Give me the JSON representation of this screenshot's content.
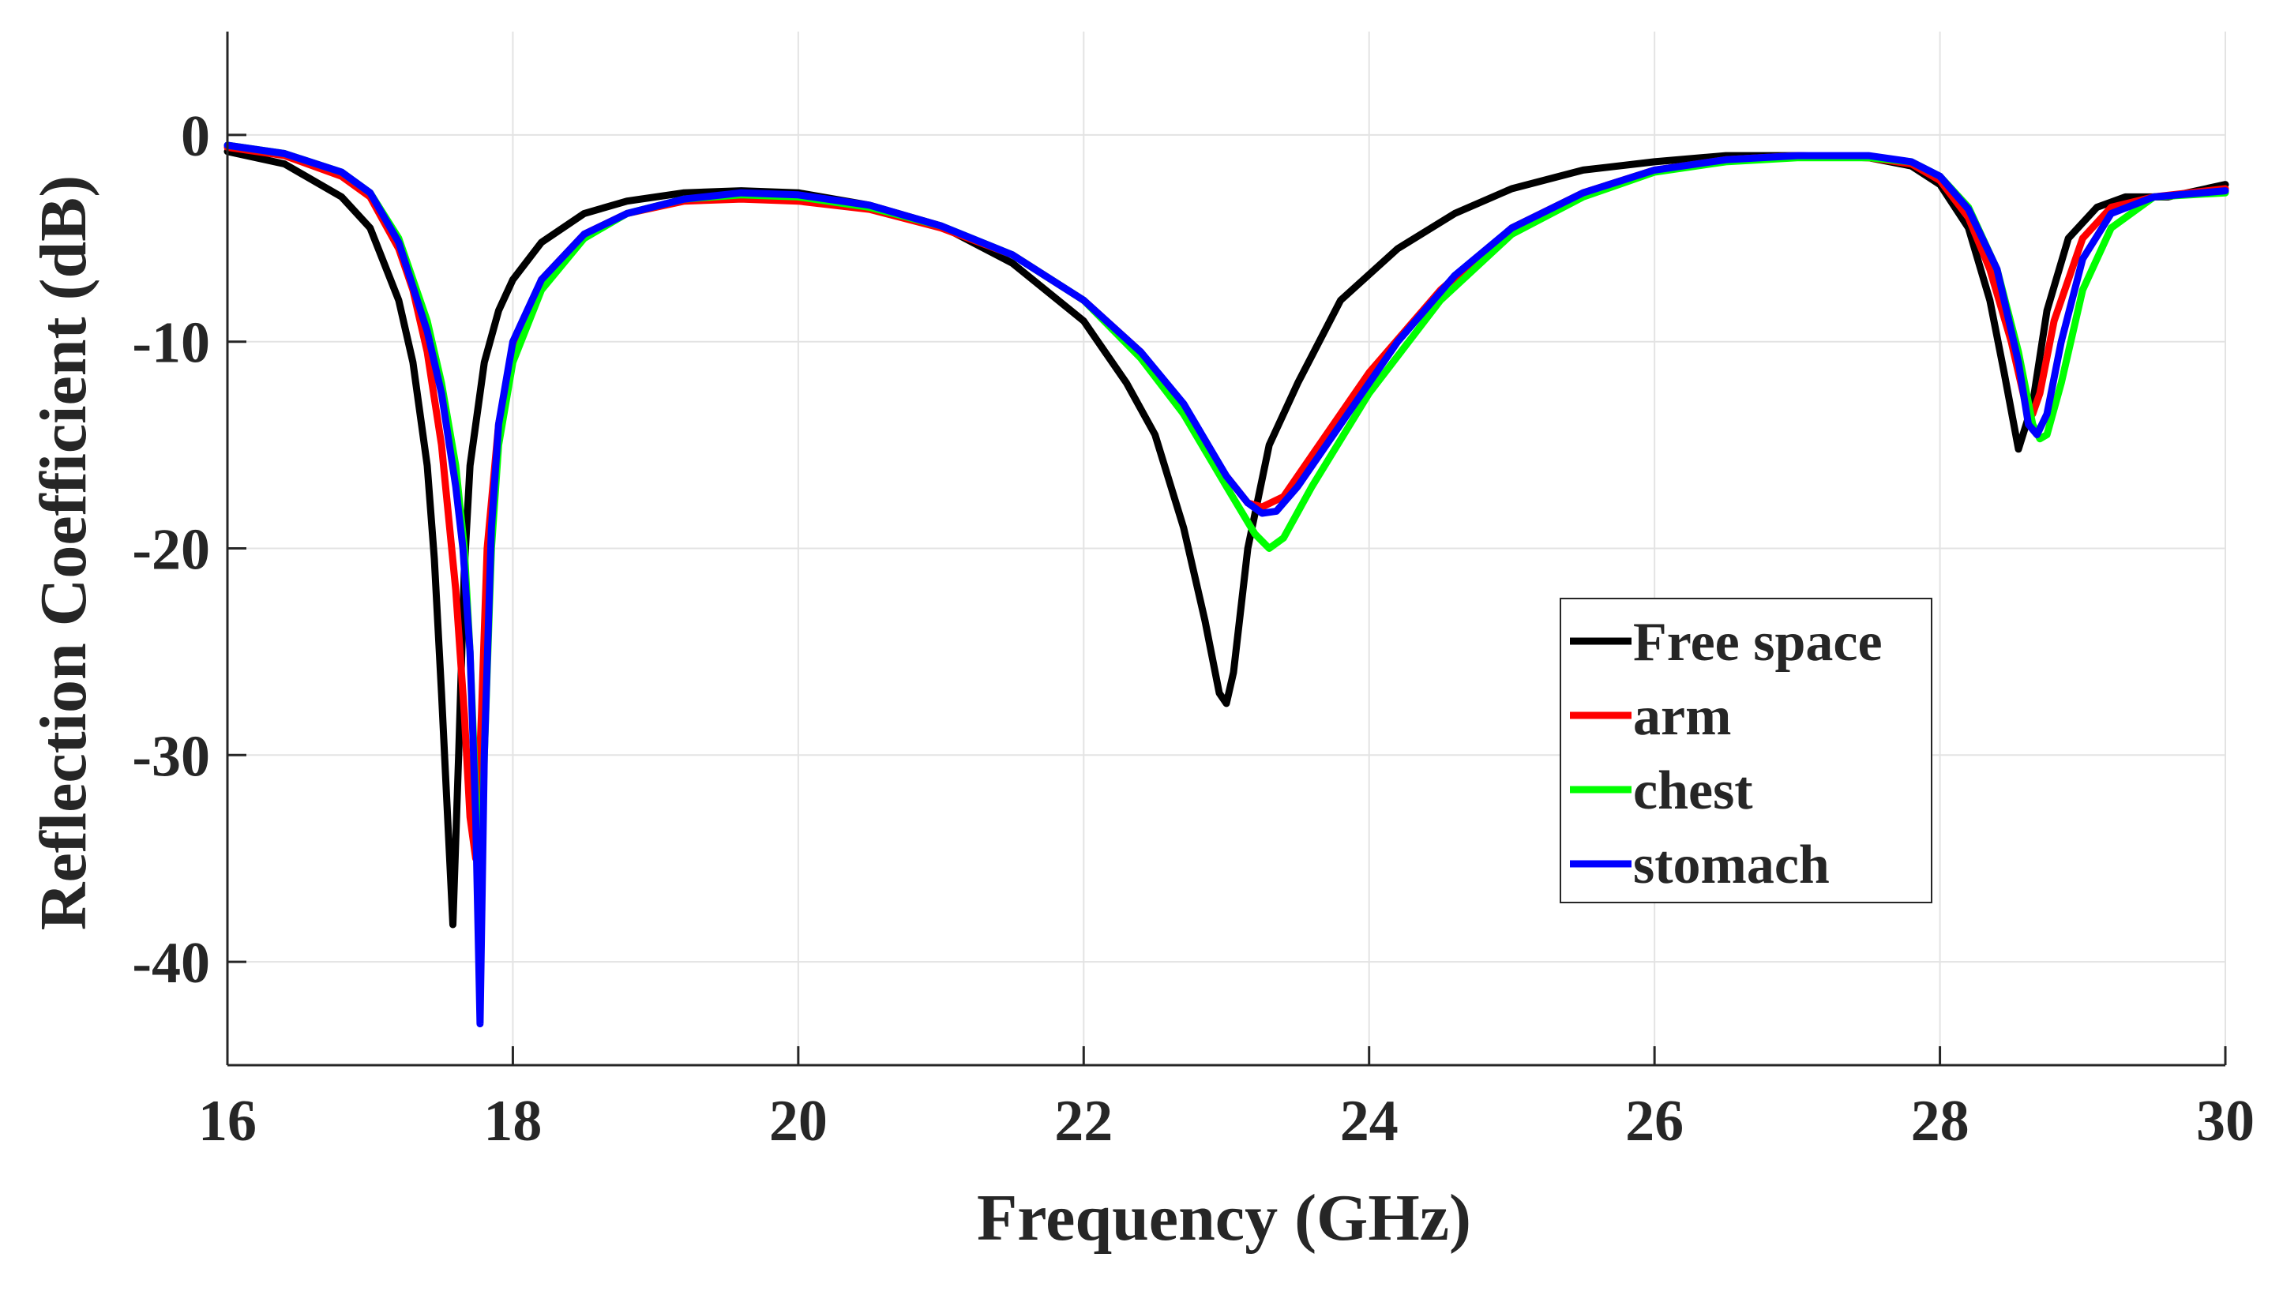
{
  "chart_data": {
    "type": "line",
    "title": "",
    "xlabel": "Frequency (GHz)",
    "ylabel": "Reflection Coefficient (dB)",
    "xlim": [
      16,
      30
    ],
    "ylim": [
      -45,
      5
    ],
    "xticks": [
      16,
      18,
      20,
      22,
      24,
      26,
      28,
      30
    ],
    "yticks": [
      0,
      -10,
      -20,
      -30,
      -40
    ],
    "xtick_labels": [
      "16",
      "18",
      "20",
      "22",
      "24",
      "26",
      "28",
      "30"
    ],
    "ytick_labels": [
      "0",
      "-10",
      "-20",
      "-30",
      "-40"
    ],
    "grid": true,
    "legend_position": "center-right",
    "series": [
      {
        "name": "Free space",
        "color": "#000000",
        "x": [
          16.0,
          16.4,
          16.8,
          17.0,
          17.2,
          17.3,
          17.4,
          17.45,
          17.5,
          17.55,
          17.58,
          17.62,
          17.66,
          17.7,
          17.8,
          17.9,
          18.0,
          18.2,
          18.5,
          18.8,
          19.2,
          19.6,
          20.0,
          20.5,
          21.0,
          21.5,
          22.0,
          22.3,
          22.5,
          22.7,
          22.85,
          22.95,
          23.0,
          23.05,
          23.15,
          23.3,
          23.5,
          23.8,
          24.2,
          24.6,
          25.0,
          25.5,
          26.0,
          26.5,
          27.0,
          27.5,
          27.8,
          28.0,
          28.2,
          28.35,
          28.45,
          28.55,
          28.65,
          28.75,
          28.9,
          29.1,
          29.3,
          29.6,
          30.0
        ],
        "y": [
          -0.8,
          -1.4,
          -3.0,
          -4.5,
          -8.0,
          -11.0,
          -16.0,
          -20.5,
          -27.0,
          -34.0,
          -38.2,
          -30.0,
          -21.0,
          -16.0,
          -11.0,
          -8.5,
          -7.0,
          -5.2,
          -3.8,
          -3.2,
          -2.8,
          -2.7,
          -2.8,
          -3.4,
          -4.4,
          -6.2,
          -9.0,
          -12.0,
          -14.5,
          -19.0,
          -23.5,
          -27.0,
          -27.5,
          -26.0,
          -20.0,
          -15.0,
          -12.0,
          -8.0,
          -5.5,
          -3.8,
          -2.6,
          -1.7,
          -1.3,
          -1.0,
          -1.0,
          -1.1,
          -1.5,
          -2.4,
          -4.5,
          -8.0,
          -11.5,
          -15.2,
          -13.0,
          -8.5,
          -5.0,
          -3.5,
          -3.0,
          -3.0,
          -2.4
        ]
      },
      {
        "name": "arm",
        "color": "#ff0000",
        "x": [
          16.0,
          16.4,
          16.8,
          17.0,
          17.2,
          17.3,
          17.4,
          17.5,
          17.6,
          17.66,
          17.7,
          17.74,
          17.78,
          17.82,
          17.9,
          18.0,
          18.2,
          18.5,
          18.8,
          19.2,
          19.6,
          20.0,
          20.5,
          21.0,
          21.5,
          22.0,
          22.4,
          22.7,
          23.0,
          23.15,
          23.25,
          23.4,
          23.6,
          24.0,
          24.5,
          25.0,
          25.5,
          26.0,
          26.5,
          27.0,
          27.5,
          27.8,
          28.0,
          28.2,
          28.35,
          28.5,
          28.6,
          28.65,
          28.7,
          28.8,
          29.0,
          29.2,
          29.5,
          30.0
        ],
        "y": [
          -0.6,
          -1.0,
          -2.0,
          -3.0,
          -5.5,
          -7.5,
          -10.5,
          -15.0,
          -22.0,
          -28.0,
          -33.0,
          -35.0,
          -28.0,
          -20.0,
          -14.0,
          -10.5,
          -7.0,
          -4.8,
          -3.8,
          -3.2,
          -3.1,
          -3.2,
          -3.6,
          -4.5,
          -5.8,
          -8.0,
          -10.5,
          -13.5,
          -16.5,
          -17.8,
          -18.0,
          -17.5,
          -15.5,
          -11.5,
          -7.5,
          -4.5,
          -2.8,
          -1.7,
          -1.2,
          -1.0,
          -1.1,
          -1.4,
          -2.2,
          -4.0,
          -6.5,
          -10.0,
          -13.0,
          -13.5,
          -12.5,
          -9.0,
          -5.0,
          -3.5,
          -3.0,
          -2.6
        ]
      },
      {
        "name": "chest",
        "color": "#00ff00",
        "x": [
          16.0,
          16.4,
          16.8,
          17.0,
          17.2,
          17.4,
          17.5,
          17.6,
          17.66,
          17.7,
          17.74,
          17.77,
          17.8,
          17.85,
          17.9,
          18.0,
          18.2,
          18.5,
          18.8,
          19.2,
          19.6,
          20.0,
          20.5,
          21.0,
          21.5,
          22.0,
          22.4,
          22.7,
          23.0,
          23.2,
          23.3,
          23.4,
          23.6,
          24.0,
          24.5,
          25.0,
          25.5,
          26.0,
          26.5,
          27.0,
          27.5,
          27.8,
          28.0,
          28.2,
          28.4,
          28.55,
          28.65,
          28.7,
          28.75,
          28.85,
          29.0,
          29.2,
          29.5,
          30.0
        ],
        "y": [
          -0.5,
          -0.9,
          -1.8,
          -2.8,
          -5.0,
          -9.0,
          -12.0,
          -16.0,
          -20.0,
          -25.0,
          -32.0,
          -38.0,
          -30.0,
          -20.0,
          -15.0,
          -11.0,
          -7.5,
          -5.0,
          -3.8,
          -3.1,
          -2.9,
          -3.0,
          -3.5,
          -4.4,
          -5.8,
          -8.0,
          -10.8,
          -13.5,
          -17.0,
          -19.3,
          -20.0,
          -19.5,
          -17.0,
          -12.5,
          -8.0,
          -4.8,
          -3.0,
          -1.8,
          -1.3,
          -1.1,
          -1.1,
          -1.3,
          -2.0,
          -3.5,
          -6.5,
          -10.5,
          -14.0,
          -14.7,
          -14.5,
          -12.0,
          -7.5,
          -4.5,
          -3.0,
          -2.8
        ]
      },
      {
        "name": "stomach",
        "color": "#0000ff",
        "x": [
          16.0,
          16.4,
          16.8,
          17.0,
          17.2,
          17.4,
          17.5,
          17.6,
          17.65,
          17.7,
          17.74,
          17.77,
          17.8,
          17.85,
          17.9,
          18.0,
          18.2,
          18.5,
          18.8,
          19.2,
          19.6,
          20.0,
          20.5,
          21.0,
          21.5,
          22.0,
          22.4,
          22.7,
          23.0,
          23.15,
          23.25,
          23.35,
          23.5,
          23.8,
          24.2,
          24.6,
          25.0,
          25.5,
          26.0,
          26.5,
          27.0,
          27.5,
          27.8,
          28.0,
          28.2,
          28.4,
          28.55,
          28.62,
          28.68,
          28.75,
          28.85,
          29.0,
          29.2,
          29.5,
          30.0
        ],
        "y": [
          -0.5,
          -0.9,
          -1.8,
          -2.8,
          -5.2,
          -9.5,
          -12.5,
          -17.0,
          -20.0,
          -25.0,
          -33.0,
          -43.0,
          -30.0,
          -19.0,
          -14.0,
          -10.0,
          -7.0,
          -4.8,
          -3.8,
          -3.1,
          -2.8,
          -2.9,
          -3.4,
          -4.4,
          -5.8,
          -8.0,
          -10.5,
          -13.0,
          -16.5,
          -17.8,
          -18.3,
          -18.2,
          -17.0,
          -14.0,
          -10.0,
          -6.8,
          -4.5,
          -2.8,
          -1.7,
          -1.2,
          -1.0,
          -1.0,
          -1.3,
          -2.0,
          -3.6,
          -6.5,
          -11.0,
          -14.0,
          -14.5,
          -13.5,
          -10.0,
          -6.0,
          -3.8,
          -3.0,
          -2.7
        ]
      }
    ]
  }
}
